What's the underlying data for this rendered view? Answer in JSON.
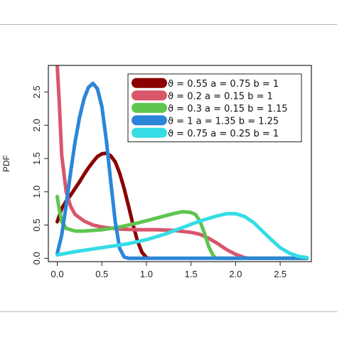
{
  "chart_data": {
    "type": "line",
    "title": "",
    "xlabel": "",
    "ylabel": "PDF",
    "xlim": [
      -0.1,
      2.85
    ],
    "ylim": [
      -0.05,
      2.9
    ],
    "x_ticks": [
      "0.0",
      "0.5",
      "1.0",
      "1.5",
      "2.0",
      "2.5"
    ],
    "y_ticks": [
      "0.0",
      "0.5",
      "1.0",
      "1.5",
      "2.0",
      "2.5"
    ],
    "grid": false,
    "legend_position": "top-right",
    "series": [
      {
        "name": "ϑ = 0.55   a = 0.75   b = 1",
        "color": "#8b0000",
        "points": [
          [
            0.0,
            0.55
          ],
          [
            0.05,
            0.75
          ],
          [
            0.1,
            0.86
          ],
          [
            0.15,
            0.95
          ],
          [
            0.2,
            1.05
          ],
          [
            0.25,
            1.15
          ],
          [
            0.3,
            1.26
          ],
          [
            0.35,
            1.36
          ],
          [
            0.4,
            1.45
          ],
          [
            0.45,
            1.53
          ],
          [
            0.5,
            1.57
          ],
          [
            0.55,
            1.58
          ],
          [
            0.6,
            1.54
          ],
          [
            0.65,
            1.45
          ],
          [
            0.7,
            1.28
          ],
          [
            0.75,
            1.05
          ],
          [
            0.8,
            0.78
          ],
          [
            0.85,
            0.5
          ],
          [
            0.9,
            0.26
          ],
          [
            0.95,
            0.09
          ],
          [
            1.0,
            0.01
          ],
          [
            1.03,
            0.0
          ]
        ]
      },
      {
        "name": "ϑ = 0.2   a = 0.15   b = 1",
        "color": "#d9566b",
        "points": [
          [
            0.0,
            2.9
          ],
          [
            0.02,
            2.4
          ],
          [
            0.05,
            1.55
          ],
          [
            0.1,
            1.0
          ],
          [
            0.15,
            0.78
          ],
          [
            0.2,
            0.66
          ],
          [
            0.3,
            0.56
          ],
          [
            0.4,
            0.5
          ],
          [
            0.5,
            0.47
          ],
          [
            0.7,
            0.44
          ],
          [
            0.9,
            0.43
          ],
          [
            1.1,
            0.43
          ],
          [
            1.3,
            0.42
          ],
          [
            1.5,
            0.39
          ],
          [
            1.6,
            0.36
          ],
          [
            1.7,
            0.3
          ],
          [
            1.8,
            0.22
          ],
          [
            1.9,
            0.13
          ],
          [
            2.0,
            0.06
          ],
          [
            2.1,
            0.01
          ],
          [
            2.15,
            0.0
          ],
          [
            2.8,
            0.0
          ]
        ]
      },
      {
        "name": "ϑ = 0.3   a = 0.15   b = 1.15",
        "color": "#5dc64f",
        "points": [
          [
            0.0,
            0.93
          ],
          [
            0.02,
            0.75
          ],
          [
            0.05,
            0.55
          ],
          [
            0.1,
            0.45
          ],
          [
            0.2,
            0.41
          ],
          [
            0.3,
            0.41
          ],
          [
            0.5,
            0.43
          ],
          [
            0.7,
            0.47
          ],
          [
            0.9,
            0.53
          ],
          [
            1.1,
            0.6
          ],
          [
            1.3,
            0.67
          ],
          [
            1.4,
            0.7
          ],
          [
            1.5,
            0.69
          ],
          [
            1.55,
            0.66
          ],
          [
            1.6,
            0.56
          ],
          [
            1.65,
            0.38
          ],
          [
            1.7,
            0.17
          ],
          [
            1.75,
            0.04
          ],
          [
            1.78,
            0.0
          ],
          [
            2.8,
            0.0
          ]
        ]
      },
      {
        "name": "ϑ = 1   a = 1.35   b = 1.25",
        "color": "#2b86d9",
        "points": [
          [
            0.0,
            0.07
          ],
          [
            0.05,
            0.35
          ],
          [
            0.1,
            0.8
          ],
          [
            0.15,
            1.3
          ],
          [
            0.2,
            1.75
          ],
          [
            0.25,
            2.12
          ],
          [
            0.3,
            2.4
          ],
          [
            0.35,
            2.57
          ],
          [
            0.4,
            2.63
          ],
          [
            0.45,
            2.55
          ],
          [
            0.5,
            2.28
          ],
          [
            0.55,
            1.78
          ],
          [
            0.6,
            1.15
          ],
          [
            0.65,
            0.55
          ],
          [
            0.7,
            0.15
          ],
          [
            0.75,
            0.02
          ],
          [
            0.8,
            0.0
          ],
          [
            2.8,
            0.0
          ]
        ]
      },
      {
        "name": "ϑ = 0.75   a = 0.25   b = 1",
        "color": "#35dce6",
        "points": [
          [
            0.0,
            0.05
          ],
          [
            0.2,
            0.1
          ],
          [
            0.4,
            0.14
          ],
          [
            0.6,
            0.18
          ],
          [
            0.8,
            0.22
          ],
          [
            1.0,
            0.28
          ],
          [
            1.2,
            0.36
          ],
          [
            1.4,
            0.46
          ],
          [
            1.6,
            0.56
          ],
          [
            1.8,
            0.64
          ],
          [
            1.9,
            0.67
          ],
          [
            2.0,
            0.67
          ],
          [
            2.1,
            0.63
          ],
          [
            2.2,
            0.54
          ],
          [
            2.3,
            0.41
          ],
          [
            2.4,
            0.28
          ],
          [
            2.5,
            0.16
          ],
          [
            2.6,
            0.08
          ],
          [
            2.7,
            0.03
          ],
          [
            2.8,
            0.01
          ]
        ]
      }
    ]
  }
}
